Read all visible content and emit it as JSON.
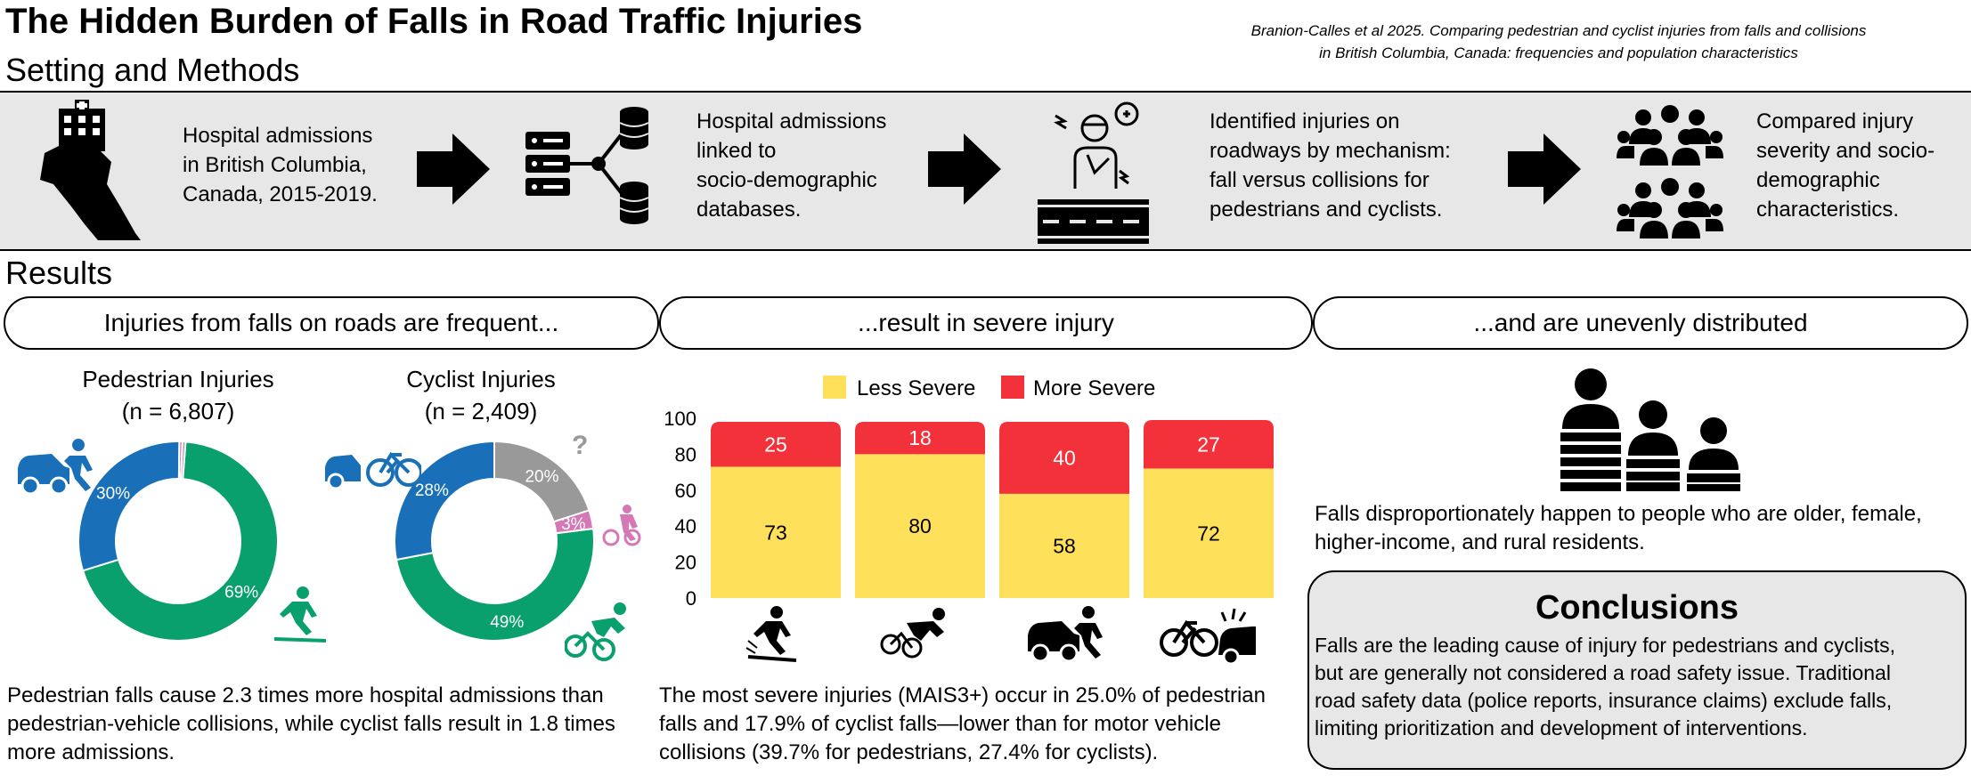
{
  "header": {
    "title": "The Hidden Burden of Falls in Road Traffic Injuries",
    "citation_line1": "Branion-Calles et al 2025. Comparing pedestrian and cyclist injuries from falls and collisions",
    "citation_line2": "in British Columbia, Canada: frequencies and population characteristics"
  },
  "methods": {
    "heading": "Setting and Methods",
    "steps": [
      {
        "icon": "hospital-map-icon",
        "lines": [
          "Hospital admissions",
          "in British Columbia,",
          "Canada, 2015-2019."
        ]
      },
      {
        "icon": "database-link-icon",
        "lines": [
          "Hospital admissions",
          "linked to",
          "socio-demographic",
          "databases."
        ]
      },
      {
        "icon": "injured-person-road-icon",
        "lines": [
          "Identified injuries on",
          "roadways by mechanism:",
          "fall versus collisions for",
          "pedestrians and cyclists."
        ]
      },
      {
        "icon": "population-groups-icon",
        "lines": [
          "Compared  injury",
          "severity and socio-",
          "demographic",
          "characteristics."
        ]
      }
    ]
  },
  "results": {
    "heading": "Results",
    "pills": [
      "Injuries from falls on roads are frequent...",
      "...result in severe injury",
      "...and are unevenly distributed"
    ]
  },
  "colors": {
    "collision": "#1a70b8",
    "fall": "#0aa06e",
    "unknown": "#999999",
    "other": "#d478b6",
    "less_severe": "#ffe05a",
    "more_severe": "#f2313a",
    "box": "#e7e7e7"
  },
  "chart_data": [
    {
      "type": "pie",
      "title": "Pedestrian Injuries",
      "subtitle": "(n = 6,807)",
      "labels": [
        "69%",
        "30%",
        "",
        ""
      ],
      "values": [
        69,
        30,
        0.5,
        0.5
      ],
      "colors": [
        "#0aa06e",
        "#1a70b8",
        "#d478b6",
        "#999999"
      ],
      "icons": [
        "pedestrian-fall-icon",
        "pedestrian-vehicle-collision-icon"
      ]
    },
    {
      "type": "pie",
      "title": "Cyclist Injuries",
      "subtitle": "(n = 2,409)",
      "labels": [
        "49%",
        "28%",
        "20%",
        "3%"
      ],
      "values": [
        49,
        28,
        20,
        3
      ],
      "colors": [
        "#0aa06e",
        "#1a70b8",
        "#999999",
        "#d478b6"
      ],
      "icons": [
        "cyclist-fall-icon",
        "cyclist-vehicle-collision-icon",
        "question-mark-icon",
        "cyclist-pedestrian-icon"
      ]
    },
    {
      "type": "bar",
      "stacked": true,
      "categories": [
        "pedestrian-fall",
        "cyclist-fall",
        "pedestrian-collision",
        "cyclist-collision"
      ],
      "category_icons": [
        "pedestrian-fall-icon",
        "cyclist-fall-icon",
        "pedestrian-vehicle-collision-icon",
        "cyclist-vehicle-collision-icon"
      ],
      "series": [
        {
          "name": "Less Severe",
          "values": [
            73,
            80,
            58,
            72
          ],
          "color": "#ffe05a"
        },
        {
          "name": "More Severe",
          "values": [
            25,
            18,
            40,
            27
          ],
          "color": "#f2313a"
        }
      ],
      "ylim": [
        0,
        100
      ],
      "yticks": [
        "0",
        "20",
        "40",
        "60",
        "80",
        "100"
      ],
      "legend": "top"
    }
  ],
  "captions": {
    "frequency": [
      "Pedestrian falls cause 2.3 times more hospital admissions than",
      "pedestrian-vehicle collisions, while cyclist falls result in 1.8 times",
      "more admissions."
    ],
    "severity": [
      "The most severe injuries (MAIS3+) occur in 25.0% of pedestrian",
      "falls and 17.9% of cyclist falls—lower than for motor vehicle",
      "collisions (39.7% for pedestrians, 27.4% for cyclists)."
    ],
    "distribution": [
      "Falls disproportionately happen to people who are older, female,",
      "higher-income, and rural residents."
    ]
  },
  "conclusions": {
    "title": "Conclusions",
    "lines": [
      "Falls are the leading cause of injury for pedestrians and cyclists,",
      "but are generally not considered a road safety issue. Traditional",
      "road safety data (police reports, insurance claims) exclude falls,",
      "limiting prioritization and development of interventions."
    ]
  }
}
